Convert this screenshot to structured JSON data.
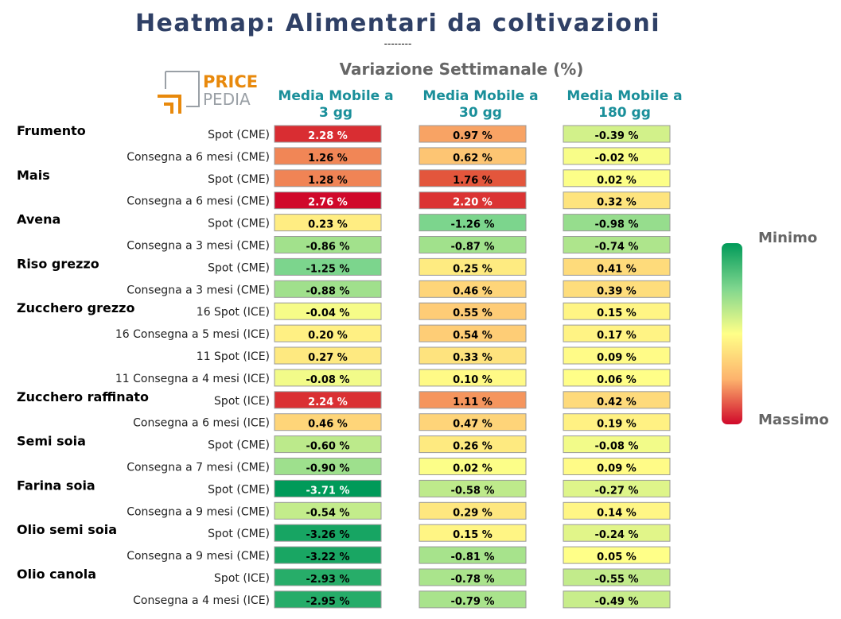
{
  "chart_data": {
    "type": "heatmap",
    "title": "Heatmap: Alimentari da coltivazioni",
    "separator": "--------",
    "subtitle": "Variazione Settimanale (%)",
    "logo": {
      "line1": "PRICE",
      "line2": "PEDIA"
    },
    "columns": [
      "Media Mobile a 3 gg",
      "Media Mobile a 30 gg",
      "Media Mobile a 180 gg"
    ],
    "column_lines": [
      [
        "Media Mobile a",
        "3 gg"
      ],
      [
        "Media Mobile a",
        "30 gg"
      ],
      [
        "Media Mobile a",
        "180 gg"
      ]
    ],
    "value_suffix": " %",
    "legend": {
      "top": "Minimo",
      "bottom": "Massimo"
    },
    "colors": {
      "min": "#009a59",
      "mid": "#ffff88",
      "max": "#d0082a",
      "title": "#2f4066",
      "column_header": "#1a8f9a",
      "legend_text": "#666666"
    },
    "rows": [
      {
        "group": "Frumento",
        "label": "Spot (CME)",
        "values": [
          2.28,
          0.97,
          -0.39
        ]
      },
      {
        "group": "",
        "label": "Consegna a 6 mesi (CME)",
        "values": [
          1.26,
          0.62,
          -0.02
        ]
      },
      {
        "group": "Mais",
        "label": "Spot (CME)",
        "values": [
          1.28,
          1.76,
          0.02
        ]
      },
      {
        "group": "",
        "label": "Consegna a 6 mesi (CME)",
        "values": [
          2.76,
          2.2,
          0.32
        ]
      },
      {
        "group": "Avena",
        "label": "Spot (CME)",
        "values": [
          0.23,
          -1.26,
          -0.98
        ]
      },
      {
        "group": "",
        "label": "Consegna a 3 mesi (CME)",
        "values": [
          -0.86,
          -0.87,
          -0.74
        ]
      },
      {
        "group": "Riso grezzo",
        "label": "Spot (CME)",
        "values": [
          -1.25,
          0.25,
          0.41
        ]
      },
      {
        "group": "",
        "label": "Consegna a 3 mesi (CME)",
        "values": [
          -0.88,
          0.46,
          0.39
        ]
      },
      {
        "group": "Zucchero grezzo",
        "label": "16 Spot (ICE)",
        "values": [
          -0.04,
          0.55,
          0.15
        ]
      },
      {
        "group": "",
        "label": "16 Consegna a 5 mesi (ICE)",
        "values": [
          0.2,
          0.54,
          0.17
        ]
      },
      {
        "group": "",
        "label": "11 Spot (ICE)",
        "values": [
          0.27,
          0.33,
          0.09
        ]
      },
      {
        "group": "",
        "label": "11 Consegna a 4 mesi (ICE)",
        "values": [
          -0.08,
          0.1,
          0.06
        ]
      },
      {
        "group": "Zucchero raffinato",
        "label": "Spot (ICE)",
        "values": [
          2.24,
          1.11,
          0.42
        ]
      },
      {
        "group": "",
        "label": "Consegna a 6 mesi (ICE)",
        "values": [
          0.46,
          0.47,
          0.19
        ]
      },
      {
        "group": "Semi soia",
        "label": "Spot (CME)",
        "values": [
          -0.6,
          0.26,
          -0.08
        ]
      },
      {
        "group": "",
        "label": "Consegna a 7 mesi (CME)",
        "values": [
          -0.9,
          0.02,
          0.09
        ]
      },
      {
        "group": "Farina soia",
        "label": "Spot (CME)",
        "values": [
          -3.71,
          -0.58,
          -0.27
        ]
      },
      {
        "group": "",
        "label": "Consegna a 9 mesi (CME)",
        "values": [
          -0.54,
          0.29,
          0.14
        ]
      },
      {
        "group": "Olio semi soia",
        "label": "Spot (CME)",
        "values": [
          -3.26,
          0.15,
          -0.24
        ]
      },
      {
        "group": "",
        "label": "Consegna a 9 mesi (CME)",
        "values": [
          -3.22,
          -0.81,
          0.05
        ]
      },
      {
        "group": "Olio canola",
        "label": "Spot (ICE)",
        "values": [
          -2.93,
          -0.78,
          -0.55
        ]
      },
      {
        "group": "",
        "label": "Consegna a 4 mesi (ICE)",
        "values": [
          -2.95,
          -0.79,
          -0.49
        ]
      }
    ]
  }
}
